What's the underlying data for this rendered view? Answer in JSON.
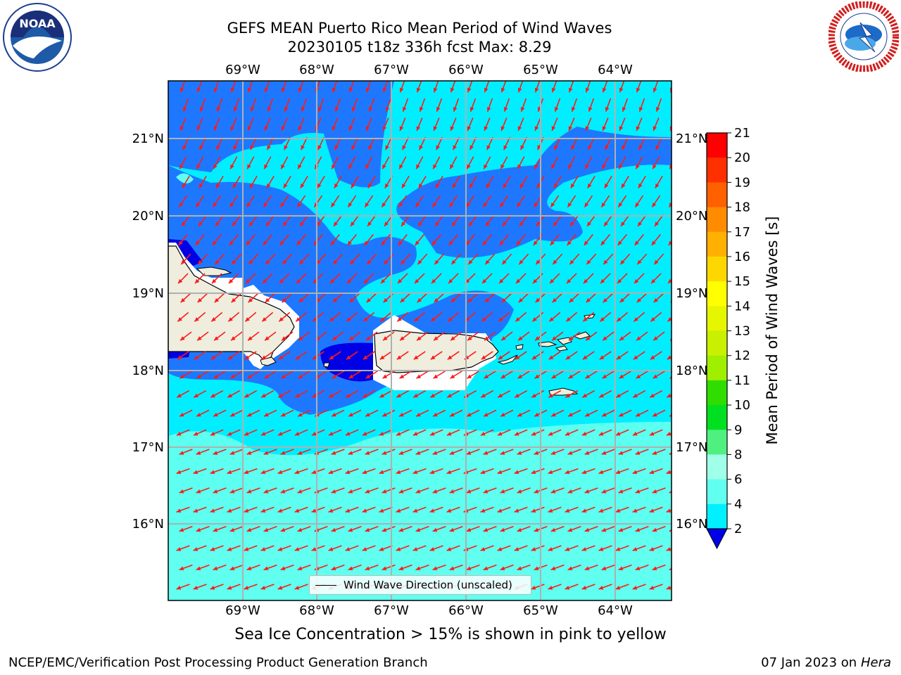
{
  "title": {
    "line1": "GEFS MEAN Puerto Rico Mean Period of Wind Waves",
    "line2": "20230105 t18z 336h fcst   Max: 8.29"
  },
  "map": {
    "lon_labels": [
      "69°W",
      "68°W",
      "67°W",
      "66°W",
      "65°W",
      "64°W"
    ],
    "lat_labels": [
      "21°N",
      "20°N",
      "19°N",
      "18°N",
      "17°N",
      "16°N"
    ],
    "legend_label": "Wind Wave Direction (unscaled)"
  },
  "colorbar": {
    "label": "Mean Period of Wind Waves [s]",
    "ticks": [
      "21",
      "20",
      "19",
      "18",
      "17",
      "16",
      "15",
      "14",
      "13",
      "12",
      "11",
      "10",
      "9",
      "8",
      "6",
      "4",
      "2"
    ],
    "colors": [
      "#ff0000",
      "#ff2000",
      "#ff5000",
      "#ff8000",
      "#ffa000",
      "#ffc000",
      "#ffe800",
      "#f0f000",
      "#d8f000",
      "#b8f000",
      "#40e000",
      "#00e000",
      "#00d040",
      "#50f080",
      "#a0ffe8",
      "#60ffee",
      "#00f4ff",
      "#1e78ff",
      "#0000e8"
    ]
  },
  "footer": {
    "sea_ice": "Sea Ice Concentration > 15% is shown in pink to yellow",
    "left": "NCEP/EMC/Verification Post Processing Product Generation Branch",
    "right_date": "07 Jan 2023 on",
    "right_machine": "Hera"
  },
  "logos": {
    "noaa": "NOAA",
    "nws_ring": "NATIONAL WEATHER SERVICE"
  }
}
